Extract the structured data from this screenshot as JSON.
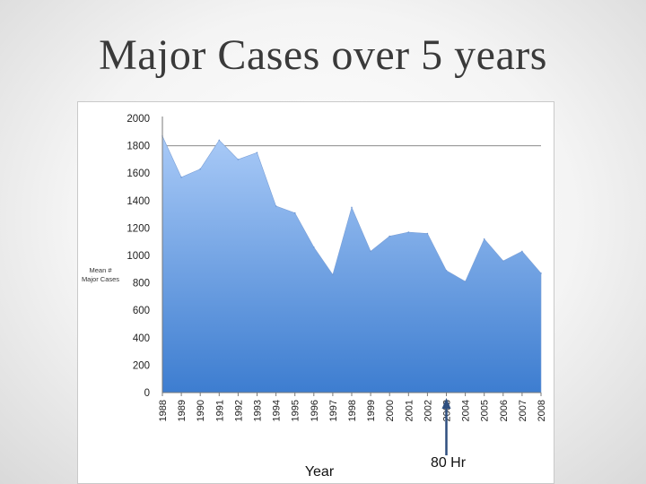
{
  "slide": {
    "title": "Major Cases over 5 years"
  },
  "chart_data": {
    "type": "area",
    "title": "",
    "ylabel": [
      "Mean #",
      "Major Cases"
    ],
    "xlabel": "Year",
    "ylim": [
      0,
      2000
    ],
    "yticks": [
      0,
      200,
      400,
      600,
      800,
      1000,
      1200,
      1400,
      1600,
      1800,
      2000
    ],
    "gridlines": [
      1800
    ],
    "categories": [
      "1988",
      "1989",
      "1990",
      "1991",
      "1992",
      "1993",
      "1994",
      "1995",
      "1996",
      "1997",
      "1998",
      "1999",
      "2000",
      "2001",
      "2002",
      "2003",
      "2004",
      "2005",
      "2006",
      "2007",
      "2008"
    ],
    "series": [
      {
        "values": [
          1870,
          1570,
          1630,
          1840,
          1700,
          1750,
          1360,
          1310,
          1060,
          860,
          1350,
          1030,
          1140,
          1170,
          1160,
          890,
          810,
          1120,
          960,
          1030,
          870
        ],
        "color_top": "#a9caf7",
        "color_bottom": "#3d7dd0"
      }
    ],
    "annotations": [
      {
        "text": "80 Hr",
        "at_category": "2003"
      }
    ]
  }
}
